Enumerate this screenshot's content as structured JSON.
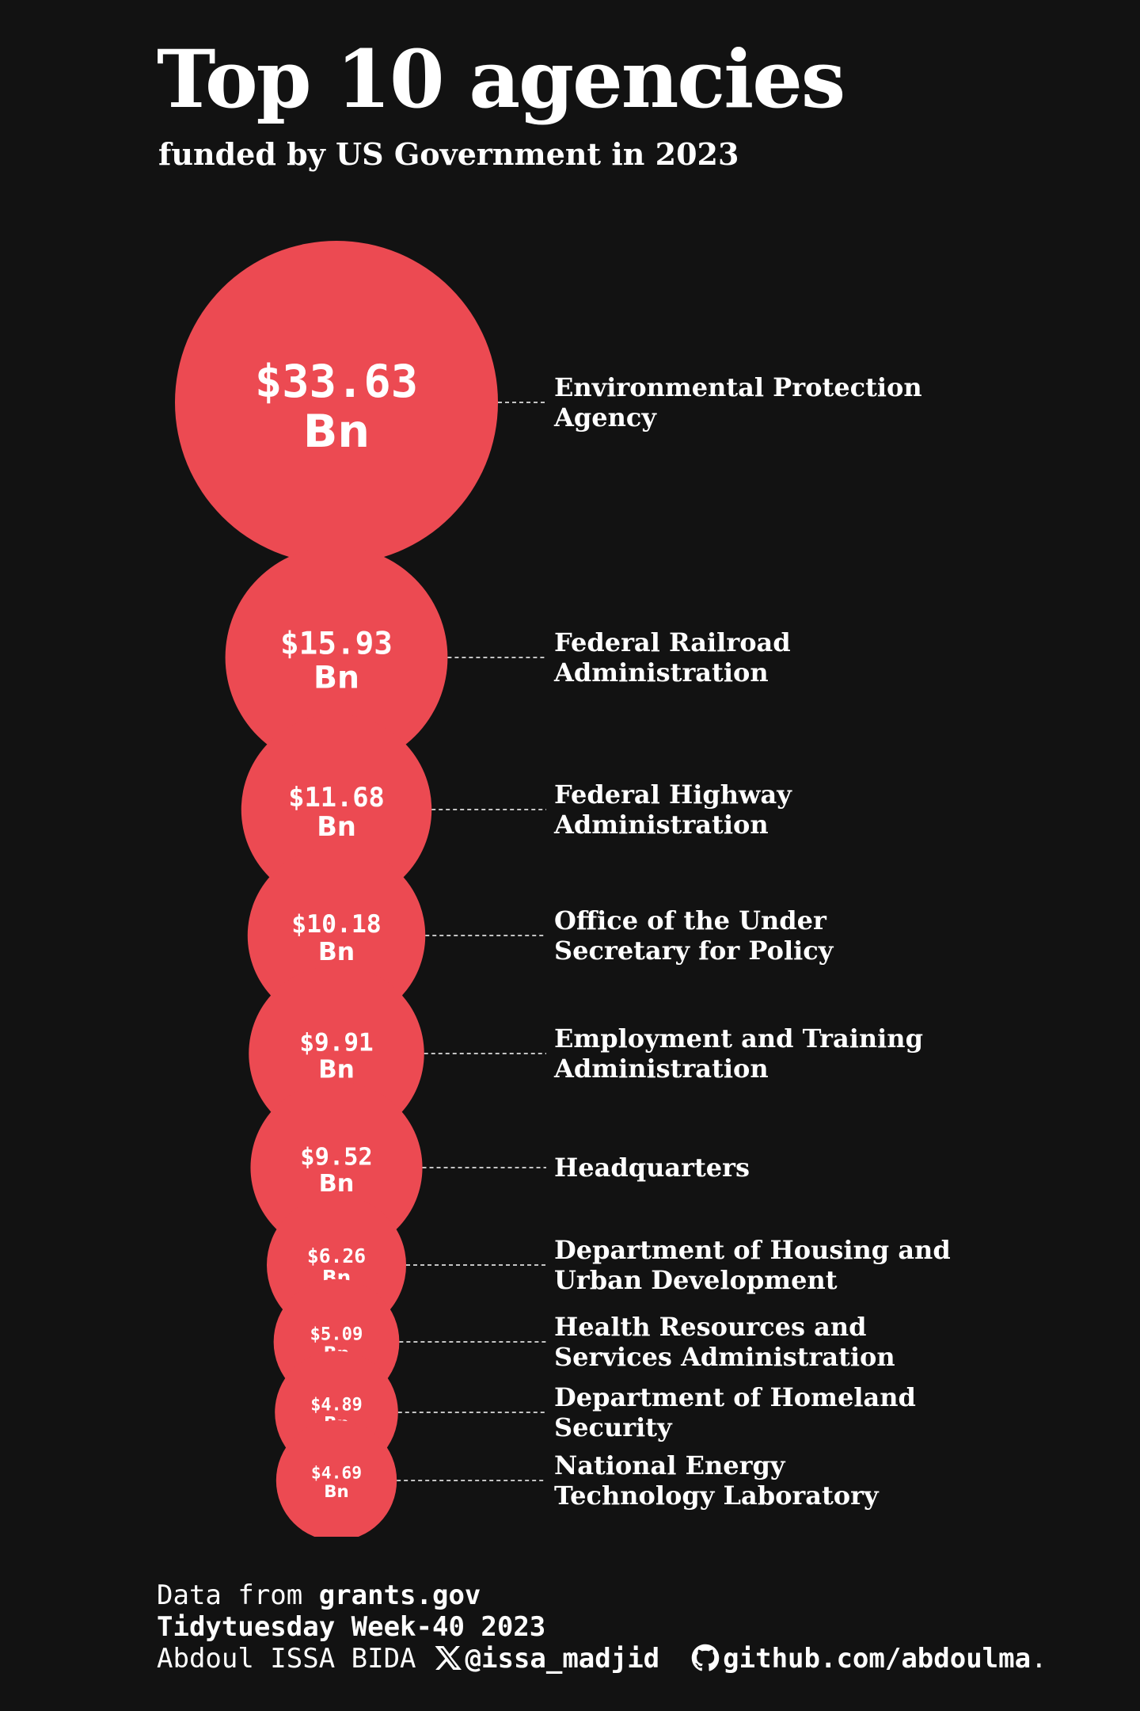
{
  "header": {
    "title": "Top 10 agencies",
    "subtitle": "funded by US Government in 2023"
  },
  "chart_data": {
    "type": "bubble",
    "title": "Top 10 agencies",
    "subtitle": "funded by US Government in 2023",
    "unit_prefix": "$",
    "unit_suffix": "Bn",
    "series": [
      {
        "name": "",
        "points": [
          {
            "agency": [
              "Environmental Protection",
              "Agency"
            ],
            "value": 33.63,
            "label": "$33.63"
          },
          {
            "agency": [
              "Federal Railroad",
              "Administration"
            ],
            "value": 15.93,
            "label": "$15.93"
          },
          {
            "agency": [
              "Federal Highway",
              "Administration"
            ],
            "value": 11.68,
            "label": "$11.68"
          },
          {
            "agency": [
              "Office of the Under",
              "Secretary for Policy"
            ],
            "value": 10.18,
            "label": "$10.18"
          },
          {
            "agency": [
              "Employment and Training",
              "Administration"
            ],
            "value": 9.91,
            "label": "$9.91"
          },
          {
            "agency": [
              "Headquarters"
            ],
            "value": 9.52,
            "label": "$9.52"
          },
          {
            "agency": [
              "Department of Housing and",
              "Urban Development"
            ],
            "value": 6.26,
            "label": "$6.26"
          },
          {
            "agency": [
              "Health Resources and",
              "Services Administration"
            ],
            "value": 5.09,
            "label": "$5.09"
          },
          {
            "agency": [
              "Department of Homeland",
              "Security"
            ],
            "value": 4.89,
            "label": "$4.89"
          },
          {
            "agency": [
              "National Energy",
              "Technology Laboratory"
            ],
            "value": 4.69,
            "label": "$4.69"
          }
        ]
      }
    ],
    "colors": {
      "bubble": "#ec4a52",
      "background": "#121212",
      "leader": "#ffffff"
    },
    "grid": false,
    "legend": "none"
  },
  "footer": {
    "data_prefix": "Data from ",
    "data_source": "grants.gov",
    "event": "Tidytuesday Week-40 2023",
    "author": "Abdoul ISSA BIDA",
    "twitter_handle": "@issa_madjid",
    "github": "github.com/abdoulma",
    "github_suffix": ".",
    "icons": {
      "twitter": "x-logo-icon",
      "github": "github-logo-icon"
    }
  }
}
